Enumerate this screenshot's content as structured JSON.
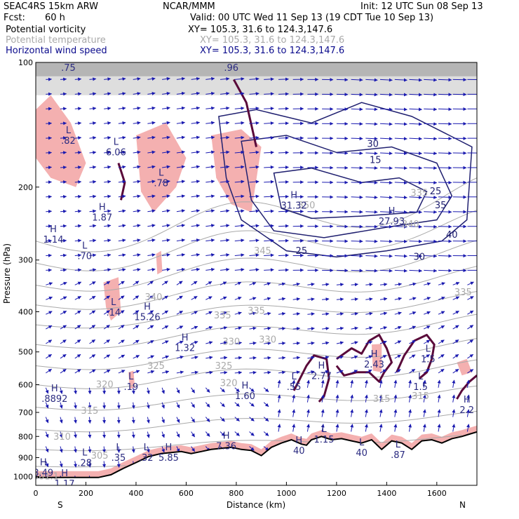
{
  "header": {
    "model": "SEAC4RS 15km ARW",
    "center": "NCAR/MMM",
    "init": "Init: 12 UTC Sun 08 Sep 13",
    "fcst_label": "Fcst:",
    "fcst_value": "60 h",
    "valid": "Valid: 00 UTC Wed 11 Sep 13 (19 CDT Tue 10 Sep 13)"
  },
  "fields": [
    {
      "name": "Potential vorticity",
      "xy": "XY= 105.3, 31.6 to 124.3,147.6",
      "color": "#000000"
    },
    {
      "name": "Potential temperature",
      "xy": "XY= 105.3, 31.6 to 124.3,147.6",
      "color": "#a8a8a8"
    },
    {
      "name": "Horizontal wind speed",
      "xy": "XY= 105.3, 31.6 to 124.3,147.6",
      "color": "#0a0a8c"
    }
  ],
  "colors": {
    "theta": "#aaaaaa",
    "wind": "#1a1ab0",
    "pv": "#5a0a3a",
    "shading": "#f4b0b0",
    "terrain": "#000000"
  },
  "chart_data": {
    "type": "cross-section",
    "xlabel": "Distance (km)",
    "ylabel": "Pressure (hPa)",
    "xlim": [
      0,
      1760
    ],
    "ylim_log": [
      1050,
      100
    ],
    "x_ticks": [
      0,
      200,
      400,
      600,
      800,
      1000,
      1200,
      1400,
      1600
    ],
    "y_ticks": [
      100,
      200,
      300,
      400,
      500,
      600,
      700,
      800,
      900,
      1000
    ],
    "left_end_label": "S",
    "right_end_label": "N",
    "terrain": {
      "x_km": [
        0,
        50,
        100,
        150,
        200,
        250,
        300,
        350,
        400,
        450,
        500,
        540,
        580,
        620,
        660,
        700,
        740,
        780,
        820,
        860,
        900,
        940,
        980,
        1020,
        1060,
        1080,
        1100,
        1140,
        1180,
        1220,
        1260,
        1300,
        1340,
        1380,
        1420,
        1460,
        1500,
        1540,
        1580,
        1620,
        1660,
        1700,
        1730,
        1760
      ],
      "p_hpa": [
        1005,
        1005,
        1005,
        1005,
        1005,
        1005,
        990,
        955,
        925,
        895,
        880,
        875,
        870,
        880,
        870,
        860,
        855,
        850,
        860,
        865,
        890,
        850,
        830,
        815,
        835,
        840,
        815,
        800,
        815,
        810,
        820,
        830,
        815,
        860,
        820,
        830,
        860,
        820,
        815,
        830,
        810,
        800,
        790,
        780
      ]
    },
    "theta_contour_labels": [
      {
        "text": "345",
        "x": 905,
        "p": 290
      },
      {
        "text": "340",
        "x": 470,
        "p": 375
      },
      {
        "text": "335",
        "x": 745,
        "p": 415
      },
      {
        "text": "335",
        "x": 880,
        "p": 405
      },
      {
        "text": "335",
        "x": 1705,
        "p": 365
      },
      {
        "text": "330",
        "x": 780,
        "p": 480
      },
      {
        "text": "330",
        "x": 925,
        "p": 475
      },
      {
        "text": "325",
        "x": 480,
        "p": 550
      },
      {
        "text": "325",
        "x": 750,
        "p": 550
      },
      {
        "text": "320",
        "x": 275,
        "p": 610
      },
      {
        "text": "320",
        "x": 770,
        "p": 605
      },
      {
        "text": "315",
        "x": 215,
        "p": 705
      },
      {
        "text": "315",
        "x": 1380,
        "p": 660
      },
      {
        "text": "315",
        "x": 1535,
        "p": 650
      },
      {
        "text": "310",
        "x": 105,
        "p": 815
      },
      {
        "text": "305",
        "x": 255,
        "p": 905
      },
      {
        "text": "301.1",
        "x": 40,
        "p": 1015
      },
      {
        "text": "350",
        "x": 1080,
        "p": 225
      },
      {
        "text": "335",
        "x": 1530,
        "p": 210
      },
      {
        "text": "340",
        "x": 1495,
        "p": 250
      }
    ],
    "wind_contour_labels": [
      {
        "text": "25",
        "x": 1060,
        "p": 290
      },
      {
        "text": "30",
        "x": 1345,
        "p": 160
      },
      {
        "text": "30",
        "x": 1530,
        "p": 300
      },
      {
        "text": "35",
        "x": 1615,
        "p": 225
      },
      {
        "text": "15",
        "x": 1355,
        "p": 175
      },
      {
        "text": "40",
        "x": 1660,
        "p": 265
      },
      {
        "text": "25",
        "x": 1595,
        "p": 208
      }
    ],
    "max_min_labels": [
      {
        "type": "L",
        "value": ".82",
        "x": 130,
        "p": 150
      },
      {
        "type": "L",
        "value": "6.06",
        "x": 320,
        "p": 160
      },
      {
        "type": "L",
        "value": ".78",
        "x": 500,
        "p": 190
      },
      {
        "type": "L",
        "value": ".96",
        "x": 780,
        "p": 100
      },
      {
        "type": "L",
        "value": ".75",
        "x": 130,
        "p": 100
      },
      {
        "type": "H",
        "value": "1.87",
        "x": 265,
        "p": 230
      },
      {
        "type": "H",
        "value": "1.14",
        "x": 70,
        "p": 260
      },
      {
        "type": "L",
        "value": ".70",
        "x": 195,
        "p": 285
      },
      {
        "type": "H",
        "value": "31.32",
        "x": 1030,
        "p": 215
      },
      {
        "type": "H",
        "value": "27.93",
        "x": 1420,
        "p": 235
      },
      {
        "type": "L",
        "value": ".14",
        "x": 310,
        "p": 390
      },
      {
        "type": "H",
        "value": "15.26",
        "x": 445,
        "p": 400
      },
      {
        "type": "H",
        "value": "1.32",
        "x": 595,
        "p": 475
      },
      {
        "type": "L",
        "value": ".19",
        "x": 380,
        "p": 590
      },
      {
        "type": "H",
        "value": ".8892",
        "x": 75,
        "p": 630
      },
      {
        "type": "H",
        "value": "1.60",
        "x": 835,
        "p": 620
      },
      {
        "type": "L",
        "value": ".55",
        "x": 1030,
        "p": 590
      },
      {
        "type": "H",
        "value": "2.77",
        "x": 1140,
        "p": 555
      },
      {
        "type": "H",
        "value": "2.43",
        "x": 1350,
        "p": 520
      },
      {
        "type": "L",
        "value": "1.5",
        "x": 1565,
        "p": 505
      },
      {
        "type": "L",
        "value": "1.5",
        "x": 1535,
        "p": 590
      },
      {
        "type": "H",
        "value": "2.2",
        "x": 1720,
        "p": 670
      },
      {
        "type": "L",
        "value": "1.15",
        "x": 1150,
        "p": 790
      },
      {
        "type": "H",
        "value": "7.36",
        "x": 760,
        "p": 820
      },
      {
        "type": "H",
        "value": "40",
        "x": 1050,
        "p": 840
      },
      {
        "type": "L",
        "value": "40",
        "x": 1300,
        "p": 850
      },
      {
        "type": "L",
        "value": ".87",
        "x": 1445,
        "p": 860
      },
      {
        "type": "L",
        "value": ".35",
        "x": 330,
        "p": 875
      },
      {
        "type": "L",
        "value": ".32",
        "x": 440,
        "p": 875
      },
      {
        "type": "H",
        "value": "5.85",
        "x": 530,
        "p": 875
      },
      {
        "type": "L",
        "value": ".28",
        "x": 195,
        "p": 900
      },
      {
        "type": "H",
        "value": "8.49",
        "x": 30,
        "p": 950
      },
      {
        "type": "H",
        "value": "1.17",
        "x": 115,
        "p": 1010
      }
    ]
  }
}
